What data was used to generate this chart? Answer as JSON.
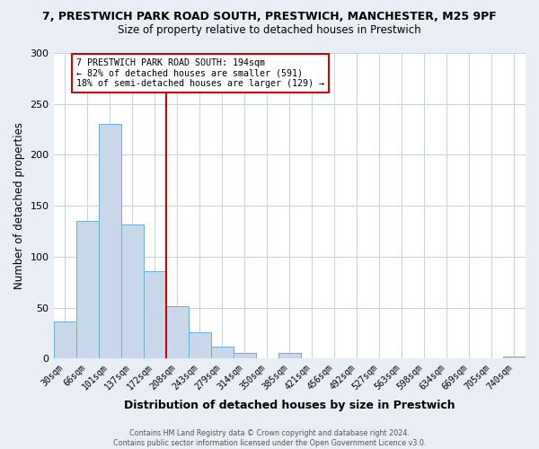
{
  "title1": "7, PRESTWICH PARK ROAD SOUTH, PRESTWICH, MANCHESTER, M25 9PF",
  "title2": "Size of property relative to detached houses in Prestwich",
  "xlabel": "Distribution of detached houses by size in Prestwich",
  "ylabel": "Number of detached properties",
  "bin_labels": [
    "30sqm",
    "66sqm",
    "101sqm",
    "137sqm",
    "172sqm",
    "208sqm",
    "243sqm",
    "279sqm",
    "314sqm",
    "350sqm",
    "385sqm",
    "421sqm",
    "456sqm",
    "492sqm",
    "527sqm",
    "563sqm",
    "598sqm",
    "634sqm",
    "669sqm",
    "705sqm",
    "740sqm"
  ],
  "bar_values": [
    36,
    135,
    230,
    132,
    86,
    51,
    26,
    12,
    6,
    0,
    6,
    0,
    0,
    0,
    0,
    0,
    0,
    0,
    0,
    0,
    2
  ],
  "bar_color": "#c8d8ea",
  "bar_edge_color": "#6aaed6",
  "vline_color": "#cc0000",
  "annotation_text": "7 PRESTWICH PARK ROAD SOUTH: 194sqm\n← 82% of detached houses are smaller (591)\n18% of semi-detached houses are larger (129) →",
  "annotation_box_color": "#ffffff",
  "annotation_box_edge": "#cc0000",
  "ylim": [
    0,
    300
  ],
  "yticks": [
    0,
    50,
    100,
    150,
    200,
    250,
    300
  ],
  "footer_text": "Contains HM Land Registry data © Crown copyright and database right 2024.\nContains public sector information licensed under the Open Government Licence v3.0.",
  "background_color": "#e8eef4",
  "plot_bg_color": "#ffffff",
  "grid_color": "#c8d4dc"
}
